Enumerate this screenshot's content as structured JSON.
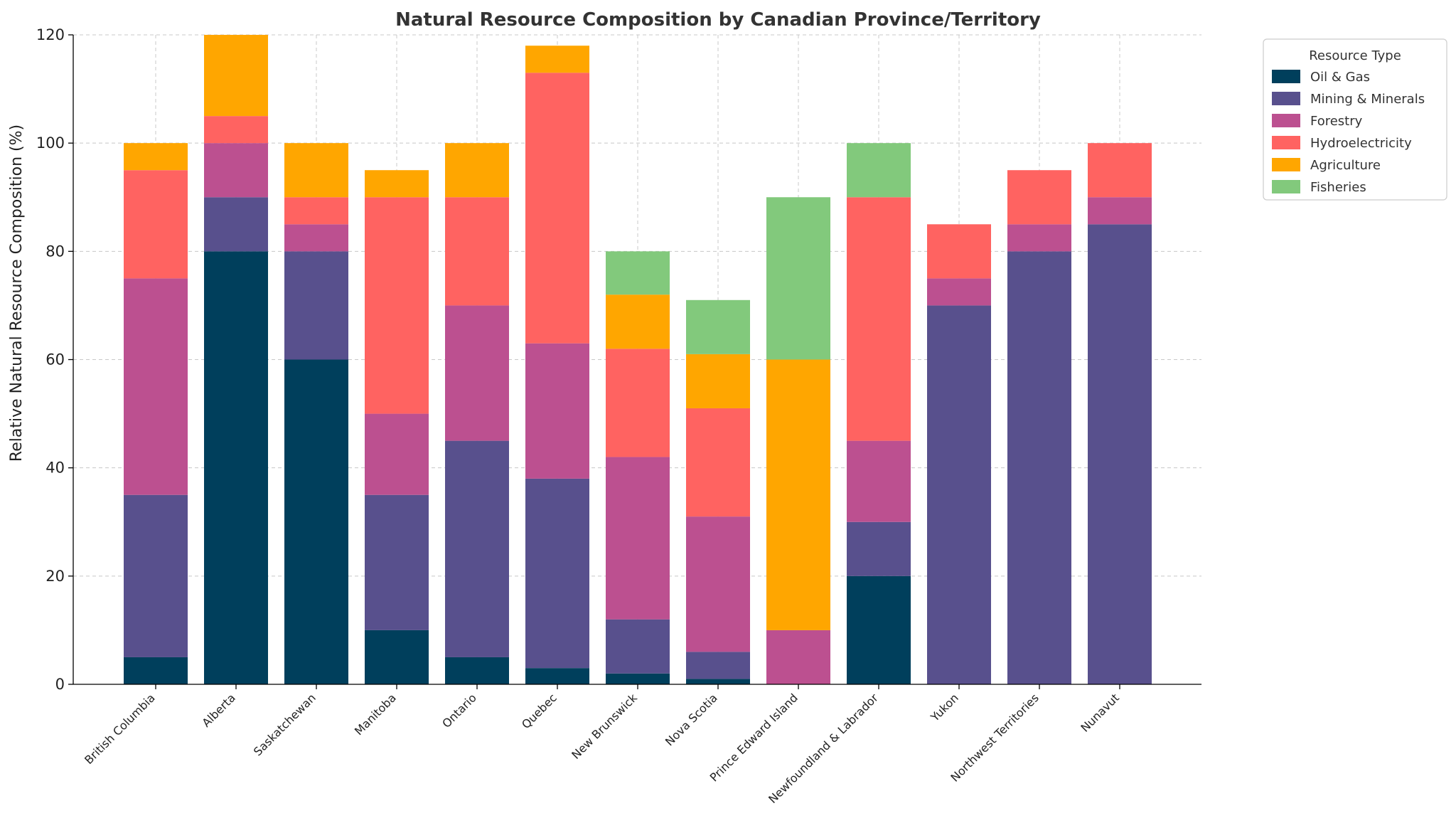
{
  "chart_data": {
    "type": "bar",
    "stacked": true,
    "title": "Natural Resource Composition by Canadian Province/Territory",
    "xlabel": "",
    "ylabel": "Relative Natural Resource Composition (%)",
    "ylim": [
      0,
      120
    ],
    "yticks": [
      0,
      20,
      40,
      60,
      80,
      100,
      120
    ],
    "grid": true,
    "legend_title": "Resource Type",
    "legend_position": "outside-top-right",
    "categories": [
      "British Columbia",
      "Alberta",
      "Saskatchewan",
      "Manitoba",
      "Ontario",
      "Quebec",
      "New Brunswick",
      "Nova Scotia",
      "Prince Edward Island",
      "Newfoundland & Labrador",
      "Yukon",
      "Northwest Territories",
      "Nunavut"
    ],
    "series": [
      {
        "name": "Oil & Gas",
        "color": "#003f5c",
        "values": [
          5,
          80,
          60,
          10,
          5,
          3,
          2,
          1,
          0,
          20,
          0,
          0,
          0
        ]
      },
      {
        "name": "Mining & Minerals",
        "color": "#58508d",
        "values": [
          30,
          10,
          20,
          25,
          40,
          35,
          10,
          5,
          0,
          10,
          70,
          80,
          85
        ]
      },
      {
        "name": "Forestry",
        "color": "#bc5090",
        "values": [
          40,
          10,
          5,
          15,
          25,
          25,
          30,
          25,
          10,
          15,
          5,
          5,
          5
        ]
      },
      {
        "name": "Hydroelectricity",
        "color": "#ff6361",
        "values": [
          20,
          5,
          5,
          40,
          20,
          50,
          20,
          20,
          0,
          45,
          10,
          10,
          10
        ]
      },
      {
        "name": "Agriculture",
        "color": "#ffa600",
        "values": [
          5,
          15,
          10,
          5,
          10,
          5,
          10,
          10,
          50,
          0,
          0,
          0,
          0
        ]
      },
      {
        "name": "Fisheries",
        "color": "#82c97c",
        "values": [
          0,
          0,
          0,
          0,
          0,
          0,
          8,
          10,
          30,
          10,
          0,
          0,
          0
        ]
      }
    ]
  }
}
